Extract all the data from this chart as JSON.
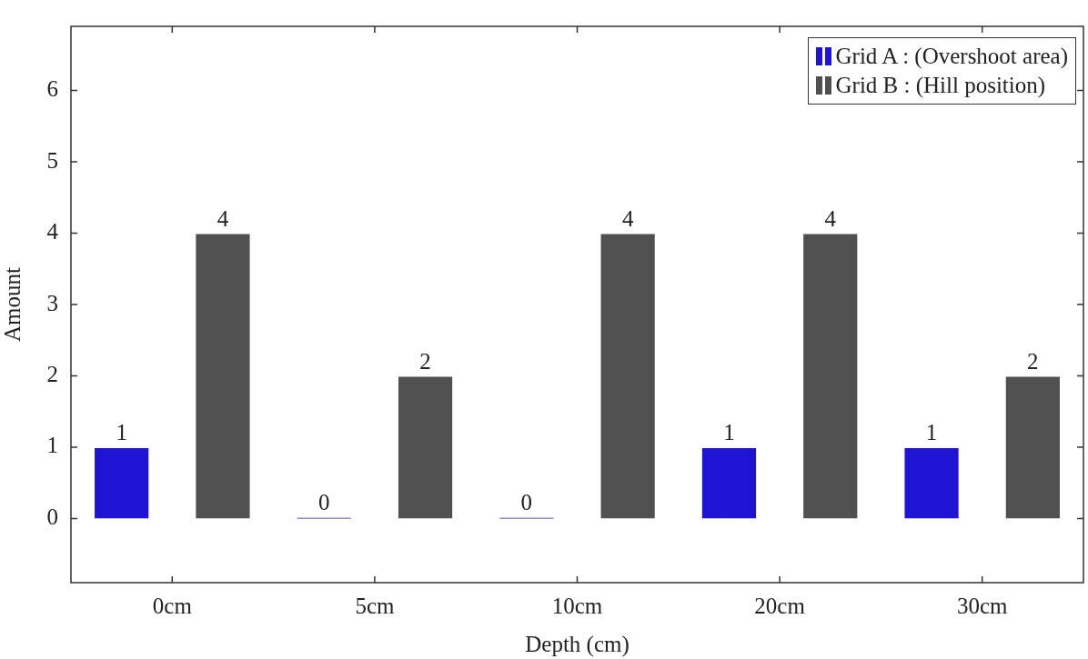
{
  "chart_data": {
    "type": "bar",
    "xlabel": "Depth (cm)",
    "ylabel": "Amount",
    "categories": [
      "0cm",
      "5cm",
      "10cm",
      "20cm",
      "30cm"
    ],
    "series": [
      {
        "name": "Grid A : (Overshoot area)",
        "color": "#1f13d4",
        "values": [
          1,
          0,
          0,
          1,
          1
        ]
      },
      {
        "name": "Grid B : (Hill position)",
        "color": "#505050",
        "values": [
          4,
          2,
          4,
          4,
          2
        ]
      }
    ],
    "ylim": [
      -0.9,
      6.9
    ],
    "yticks": [
      0,
      1,
      2,
      3,
      4,
      5,
      6
    ],
    "data_labels": true,
    "legend": "top right",
    "grid": false
  }
}
